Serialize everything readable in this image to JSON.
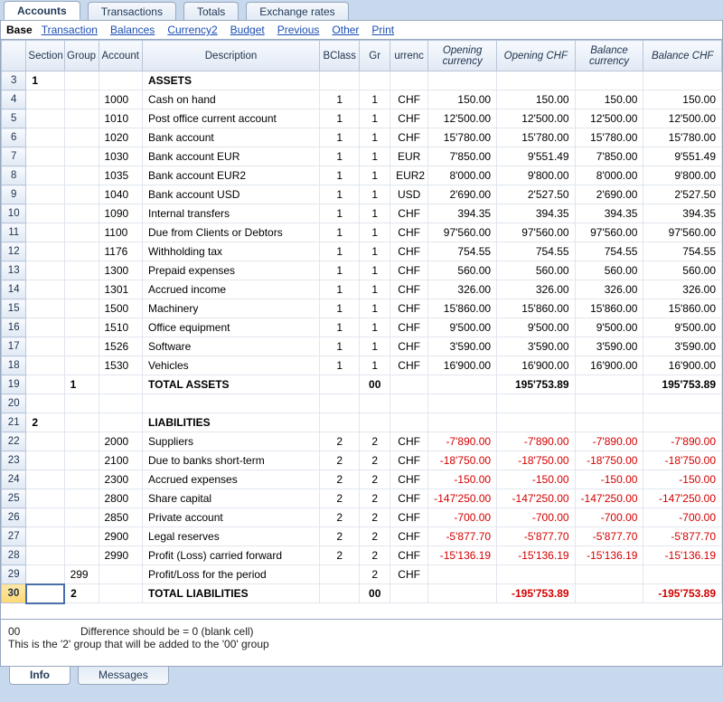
{
  "tabs_top": [
    "Accounts",
    "Transactions",
    "Totals",
    "Exchange rates"
  ],
  "tabs_top_active": 0,
  "subtabs": {
    "base": "Base",
    "links": [
      "Transaction",
      "Balances",
      "Currency2",
      "Budget",
      "Previous",
      "Other",
      "Print"
    ]
  },
  "columns": [
    "",
    "Section",
    "Group",
    "Account",
    "Description",
    "BClass",
    "Gr",
    "Currency",
    "Opening currency",
    "Opening CHF",
    "Balance currency",
    "Balance CHF"
  ],
  "col_italic": [
    false,
    false,
    false,
    false,
    false,
    false,
    false,
    false,
    true,
    true,
    true,
    true
  ],
  "active_row_index": 27,
  "rows": [
    {
      "n": 3,
      "sec": "1",
      "grp": "",
      "acc": "",
      "desc": "ASSETS",
      "bold": true
    },
    {
      "n": 4,
      "acc": "1000",
      "desc": "Cash on hand",
      "bc": "1",
      "gr": "1",
      "cur": "CHF",
      "oc": "150.00",
      "ochf": "150.00",
      "bc2": "150.00",
      "bchf": "150.00"
    },
    {
      "n": 5,
      "acc": "1010",
      "desc": "Post office current account",
      "bc": "1",
      "gr": "1",
      "cur": "CHF",
      "oc": "12'500.00",
      "ochf": "12'500.00",
      "bc2": "12'500.00",
      "bchf": "12'500.00"
    },
    {
      "n": 6,
      "acc": "1020",
      "desc": "Bank account",
      "bc": "1",
      "gr": "1",
      "cur": "CHF",
      "oc": "15'780.00",
      "ochf": "15'780.00",
      "bc2": "15'780.00",
      "bchf": "15'780.00"
    },
    {
      "n": 7,
      "acc": "1030",
      "desc": "Bank account EUR",
      "bc": "1",
      "gr": "1",
      "cur": "EUR",
      "oc": "7'850.00",
      "ochf": "9'551.49",
      "bc2": "7'850.00",
      "bchf": "9'551.49"
    },
    {
      "n": 8,
      "acc": "1035",
      "desc": "Bank account EUR2",
      "bc": "1",
      "gr": "1",
      "cur": "EUR2",
      "oc": "8'000.00",
      "ochf": "9'800.00",
      "bc2": "8'000.00",
      "bchf": "9'800.00"
    },
    {
      "n": 9,
      "acc": "1040",
      "desc": "Bank account USD",
      "bc": "1",
      "gr": "1",
      "cur": "USD",
      "oc": "2'690.00",
      "ochf": "2'527.50",
      "bc2": "2'690.00",
      "bchf": "2'527.50"
    },
    {
      "n": 10,
      "acc": "1090",
      "desc": "Internal transfers",
      "bc": "1",
      "gr": "1",
      "cur": "CHF",
      "oc": "394.35",
      "ochf": "394.35",
      "bc2": "394.35",
      "bchf": "394.35"
    },
    {
      "n": 11,
      "acc": "1100",
      "desc": "Due from Clients or Debtors",
      "bc": "1",
      "gr": "1",
      "cur": "CHF",
      "oc": "97'560.00",
      "ochf": "97'560.00",
      "bc2": "97'560.00",
      "bchf": "97'560.00"
    },
    {
      "n": 12,
      "acc": "1176",
      "desc": "Withholding tax",
      "bc": "1",
      "gr": "1",
      "cur": "CHF",
      "oc": "754.55",
      "ochf": "754.55",
      "bc2": "754.55",
      "bchf": "754.55"
    },
    {
      "n": 13,
      "acc": "1300",
      "desc": "Prepaid expenses",
      "bc": "1",
      "gr": "1",
      "cur": "CHF",
      "oc": "560.00",
      "ochf": "560.00",
      "bc2": "560.00",
      "bchf": "560.00"
    },
    {
      "n": 14,
      "acc": "1301",
      "desc": "Accrued income",
      "bc": "1",
      "gr": "1",
      "cur": "CHF",
      "oc": "326.00",
      "ochf": "326.00",
      "bc2": "326.00",
      "bchf": "326.00"
    },
    {
      "n": 15,
      "acc": "1500",
      "desc": "Machinery",
      "bc": "1",
      "gr": "1",
      "cur": "CHF",
      "oc": "15'860.00",
      "ochf": "15'860.00",
      "bc2": "15'860.00",
      "bchf": "15'860.00"
    },
    {
      "n": 16,
      "acc": "1510",
      "desc": "Office equipment",
      "bc": "1",
      "gr": "1",
      "cur": "CHF",
      "oc": "9'500.00",
      "ochf": "9'500.00",
      "bc2": "9'500.00",
      "bchf": "9'500.00"
    },
    {
      "n": 17,
      "acc": "1526",
      "desc": "Software",
      "bc": "1",
      "gr": "1",
      "cur": "CHF",
      "oc": "3'590.00",
      "ochf": "3'590.00",
      "bc2": "3'590.00",
      "bchf": "3'590.00"
    },
    {
      "n": 18,
      "acc": "1530",
      "desc": "Vehicles",
      "bc": "1",
      "gr": "1",
      "cur": "CHF",
      "oc": "16'900.00",
      "ochf": "16'900.00",
      "bc2": "16'900.00",
      "bchf": "16'900.00"
    },
    {
      "n": 19,
      "grp": "1",
      "desc": "TOTAL ASSETS",
      "gr": "00",
      "ochf": "195'753.89",
      "bchf": "195'753.89",
      "bold": true
    },
    {
      "n": 20
    },
    {
      "n": 21,
      "sec": "2",
      "desc": "LIABILITIES",
      "bold": true
    },
    {
      "n": 22,
      "acc": "2000",
      "desc": "Suppliers",
      "bc": "2",
      "gr": "2",
      "cur": "CHF",
      "oc": "-7'890.00",
      "ochf": "-7'890.00",
      "bc2": "-7'890.00",
      "bchf": "-7'890.00",
      "neg": true
    },
    {
      "n": 23,
      "acc": "2100",
      "desc": "Due to banks short-term",
      "bc": "2",
      "gr": "2",
      "cur": "CHF",
      "oc": "-18'750.00",
      "ochf": "-18'750.00",
      "bc2": "-18'750.00",
      "bchf": "-18'750.00",
      "neg": true
    },
    {
      "n": 24,
      "acc": "2300",
      "desc": "Accrued expenses",
      "bc": "2",
      "gr": "2",
      "cur": "CHF",
      "oc": "-150.00",
      "ochf": "-150.00",
      "bc2": "-150.00",
      "bchf": "-150.00",
      "neg": true
    },
    {
      "n": 25,
      "acc": "2800",
      "desc": "Share capital",
      "bc": "2",
      "gr": "2",
      "cur": "CHF",
      "oc": "-147'250.00",
      "ochf": "-147'250.00",
      "bc2": "-147'250.00",
      "bchf": "-147'250.00",
      "neg": true
    },
    {
      "n": 26,
      "acc": "2850",
      "desc": "Private account",
      "bc": "2",
      "gr": "2",
      "cur": "CHF",
      "oc": "-700.00",
      "ochf": "-700.00",
      "bc2": "-700.00",
      "bchf": "-700.00",
      "neg": true
    },
    {
      "n": 27,
      "acc": "2900",
      "desc": "Legal reserves",
      "bc": "2",
      "gr": "2",
      "cur": "CHF",
      "oc": "-5'877.70",
      "ochf": "-5'877.70",
      "bc2": "-5'877.70",
      "bchf": "-5'877.70",
      "neg": true
    },
    {
      "n": 28,
      "acc": "2990",
      "desc": "Profit (Loss) carried forward",
      "bc": "2",
      "gr": "2",
      "cur": "CHF",
      "oc": "-15'136.19",
      "ochf": "-15'136.19",
      "bc2": "-15'136.19",
      "bchf": "-15'136.19",
      "neg": true
    },
    {
      "n": 29,
      "grp": "299",
      "desc": "Profit/Loss for the period",
      "gr": "2",
      "cur": "CHF"
    },
    {
      "n": 30,
      "grp": "2",
      "desc": "TOTAL LIABILITIES",
      "gr": "00",
      "ochf": "-195'753.89",
      "bchf": "-195'753.89",
      "bold": true,
      "neg": true,
      "selected": true
    }
  ],
  "footer": {
    "line1a": "00",
    "line1b": "Difference should be = 0 (blank cell)",
    "line2": "This is the '2' group that will be added to the '00' group"
  },
  "tabs_bottom": [
    "Info",
    "Messages"
  ],
  "tabs_bottom_active": 0
}
